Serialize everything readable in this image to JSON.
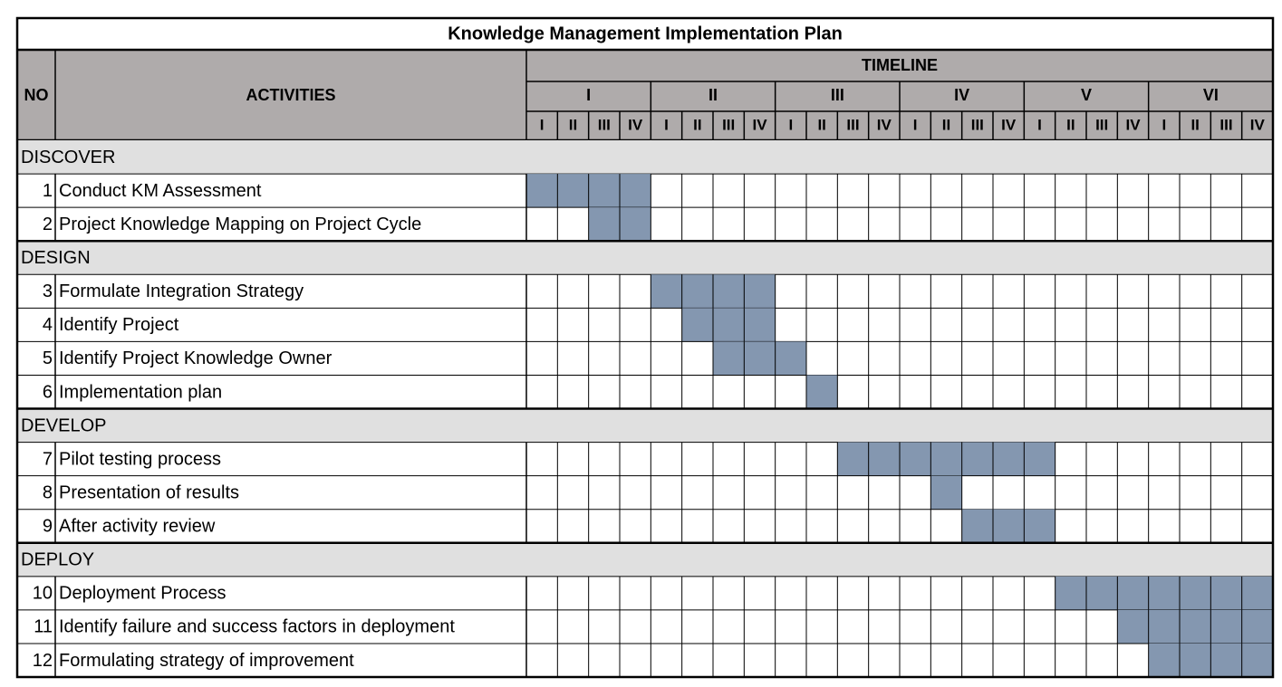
{
  "title": "Knowledge Management Implementation Plan",
  "header": {
    "no": "NO",
    "activities": "ACTIVITIES",
    "timeline": "TIMELINE",
    "years": [
      "I",
      "II",
      "III",
      "IV",
      "V",
      "VI"
    ],
    "quarters": [
      "I",
      "II",
      "III",
      "IV"
    ]
  },
  "phases": [
    {
      "name": "DISCOVER",
      "tasks": [
        {
          "no": 1,
          "activity": "Conduct KM Assessment",
          "span": [
            0,
            3
          ]
        },
        {
          "no": 2,
          "activity": "Project Knowledge Mapping on Project Cycle",
          "span": [
            2,
            3
          ]
        }
      ]
    },
    {
      "name": "DESIGN",
      "tasks": [
        {
          "no": 3,
          "activity": "Formulate Integration Strategy",
          "span": [
            4,
            7
          ]
        },
        {
          "no": 4,
          "activity": "Identify Project",
          "span": [
            5,
            7
          ]
        },
        {
          "no": 5,
          "activity": "Identify Project Knowledge Owner",
          "span": [
            6,
            8
          ]
        },
        {
          "no": 6,
          "activity": "Implementation plan",
          "span": [
            9,
            9
          ]
        }
      ]
    },
    {
      "name": "DEVELOP",
      "tasks": [
        {
          "no": 7,
          "activity": "Pilot testing process",
          "span": [
            10,
            16
          ]
        },
        {
          "no": 8,
          "activity": "Presentation of results",
          "span": [
            13,
            13
          ]
        },
        {
          "no": 9,
          "activity": "After activity review",
          "span": [
            14,
            16
          ]
        }
      ]
    },
    {
      "name": "DEPLOY",
      "tasks": [
        {
          "no": 10,
          "activity": "Deployment Process",
          "span": [
            17,
            23
          ]
        },
        {
          "no": 11,
          "activity": "Identify failure and success factors in deployment",
          "span": [
            19,
            23
          ]
        },
        {
          "no": 12,
          "activity": "Formulating strategy of improvement",
          "span": [
            20,
            23
          ]
        }
      ]
    }
  ]
}
